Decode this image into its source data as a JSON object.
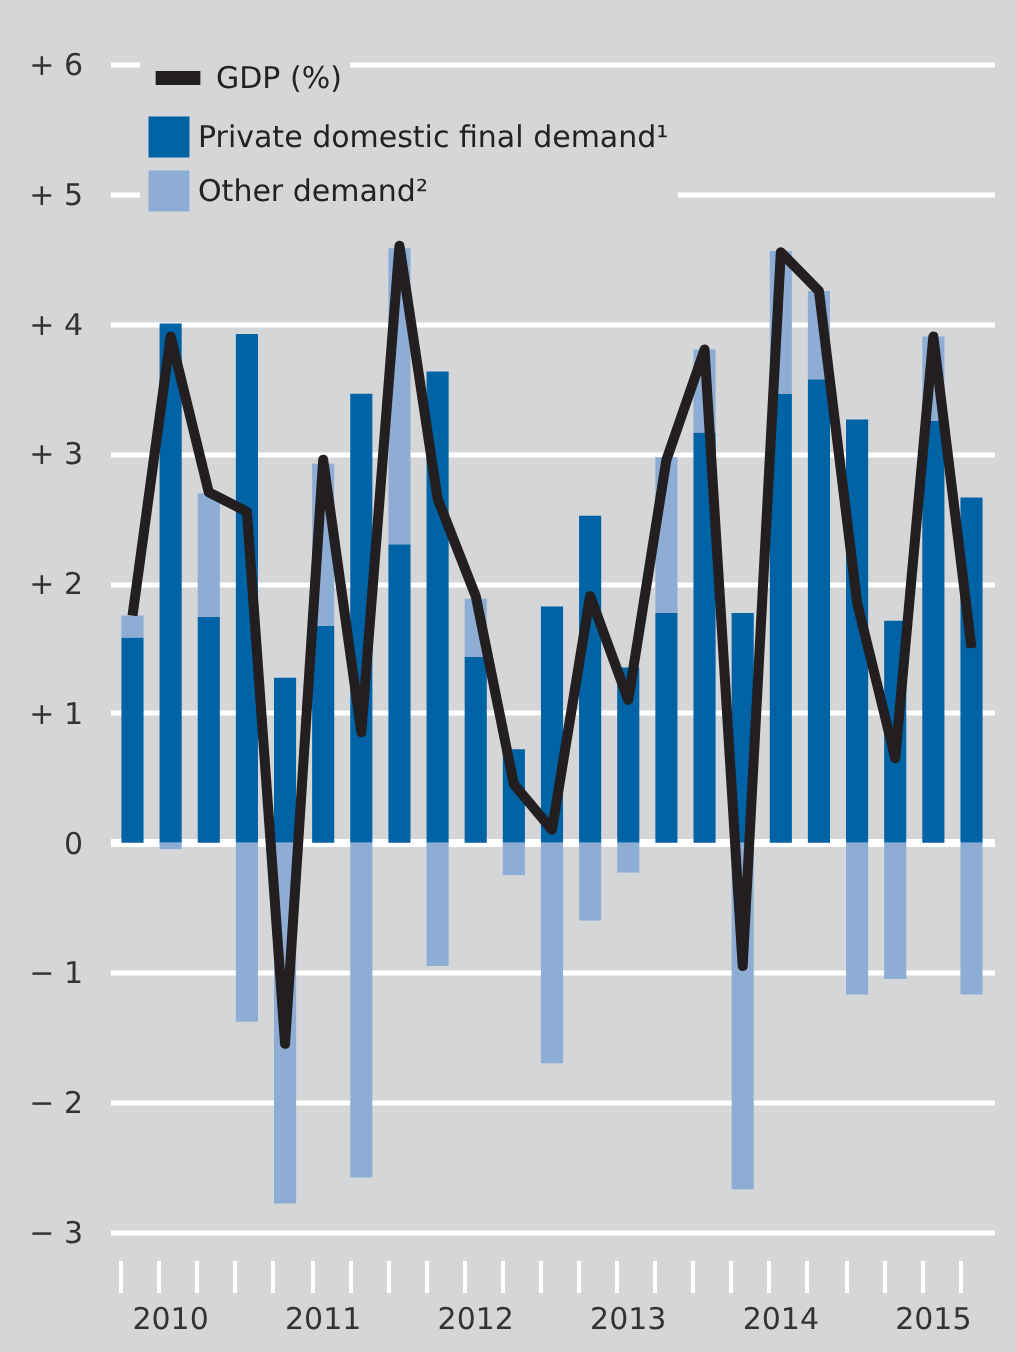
{
  "chart_data": {
    "type": "bar",
    "stacked": true,
    "categories": [
      null,
      "2010",
      null,
      null,
      null,
      "2011",
      null,
      null,
      null,
      "2012",
      null,
      null,
      null,
      "2013",
      null,
      null,
      null,
      "2014",
      null,
      null,
      null,
      "2015",
      null
    ],
    "series": [
      {
        "name": "Private domestic final demand¹",
        "color": "#0063a6",
        "values": [
          1.58,
          4.0,
          1.74,
          3.92,
          1.27,
          1.67,
          3.46,
          2.3,
          3.63,
          1.43,
          0.72,
          1.82,
          2.52,
          1.35,
          1.77,
          3.16,
          1.77,
          3.46,
          3.57,
          3.26,
          1.71,
          3.25,
          2.66
        ]
      },
      {
        "name": "Other demand²",
        "color": "#8eadd4",
        "values": [
          0.17,
          -0.05,
          0.95,
          -1.38,
          -2.78,
          1.25,
          -2.58,
          2.28,
          -0.95,
          0.45,
          -0.25,
          -1.7,
          -0.6,
          -0.23,
          1.2,
          0.64,
          -2.67,
          1.1,
          0.68,
          -1.17,
          -1.05,
          0.65,
          -1.17
        ]
      },
      {
        "name": "GDP (%)",
        "type": "line",
        "color": "#231f20",
        "values": [
          1.75,
          3.9,
          2.7,
          2.55,
          -1.55,
          2.95,
          0.85,
          4.6,
          2.65,
          1.9,
          0.45,
          0.1,
          1.9,
          1.1,
          2.95,
          3.8,
          -0.95,
          4.55,
          4.25,
          1.85,
          0.65,
          3.9,
          1.5
        ]
      }
    ],
    "ylim": [
      -3,
      6
    ],
    "yticks": [
      {
        "value": -3,
        "label": "− 3"
      },
      {
        "value": -2,
        "label": "− 2"
      },
      {
        "value": -1,
        "label": "− 1"
      },
      0,
      {
        "value": 1,
        "label": "+ 1"
      },
      {
        "value": 2,
        "label": "+ 2"
      },
      {
        "value": 3,
        "label": "+ 3"
      },
      {
        "value": 4,
        "label": "+ 4"
      },
      {
        "value": 5,
        "label": "+ 5"
      },
      {
        "value": 6,
        "label": "+ 6"
      }
    ],
    "grid": "y",
    "legend": "top left"
  }
}
